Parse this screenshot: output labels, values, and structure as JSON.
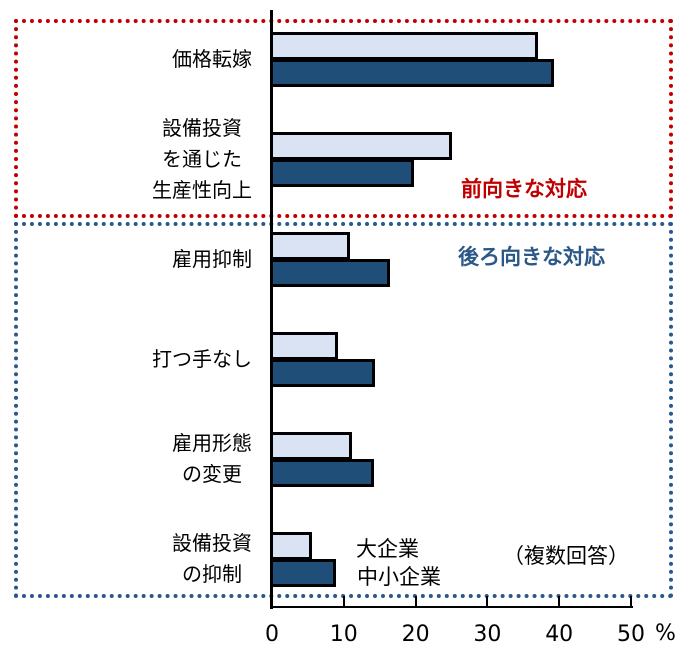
{
  "chart_data": {
    "type": "bar",
    "orientation": "horizontal",
    "title": "",
    "xlabel": "%",
    "ylabel": "",
    "xlim": [
      0,
      50
    ],
    "x_ticks": [
      "0",
      "10",
      "20",
      "30",
      "40",
      "50"
    ],
    "unit": "%",
    "grid": false,
    "categories": [
      "価格転嫁",
      "設備投資\nを通じた\n生産性向上",
      "雇用抑制",
      "打つ手なし",
      "雇用形態\nの変更",
      "設備投資\nの抑制"
    ],
    "series": [
      {
        "name": "大企業",
        "color": "#DAE3F3",
        "values": [
          37.0,
          25.1,
          10.9,
          9.2,
          11.1,
          5.6
        ]
      },
      {
        "name": "中小企業",
        "color": "#1F4E79",
        "values": [
          39.3,
          19.8,
          16.4,
          14.4,
          14.2,
          8.9
        ]
      }
    ],
    "groups": [
      {
        "label": "前向きな対応",
        "color": "#C00000",
        "categories": [
          0,
          1
        ]
      },
      {
        "label": "後ろ向きな対応",
        "color": "#2B5887",
        "categories": [
          2,
          3,
          4,
          5
        ]
      }
    ],
    "legend": [
      "大企業",
      "中小企業"
    ],
    "legend_position": "inside-bottom",
    "annotation": "（複数回答）"
  },
  "labels": {
    "groups": {
      "forward": "前向きな対応",
      "backward": "後ろ向きな対応"
    },
    "legend": {
      "large": "大企業",
      "sme": "中小企業"
    },
    "note": "（複数回答）",
    "unit": "%",
    "ticks": [
      "0",
      "10",
      "20",
      "30",
      "40",
      "50"
    ]
  }
}
